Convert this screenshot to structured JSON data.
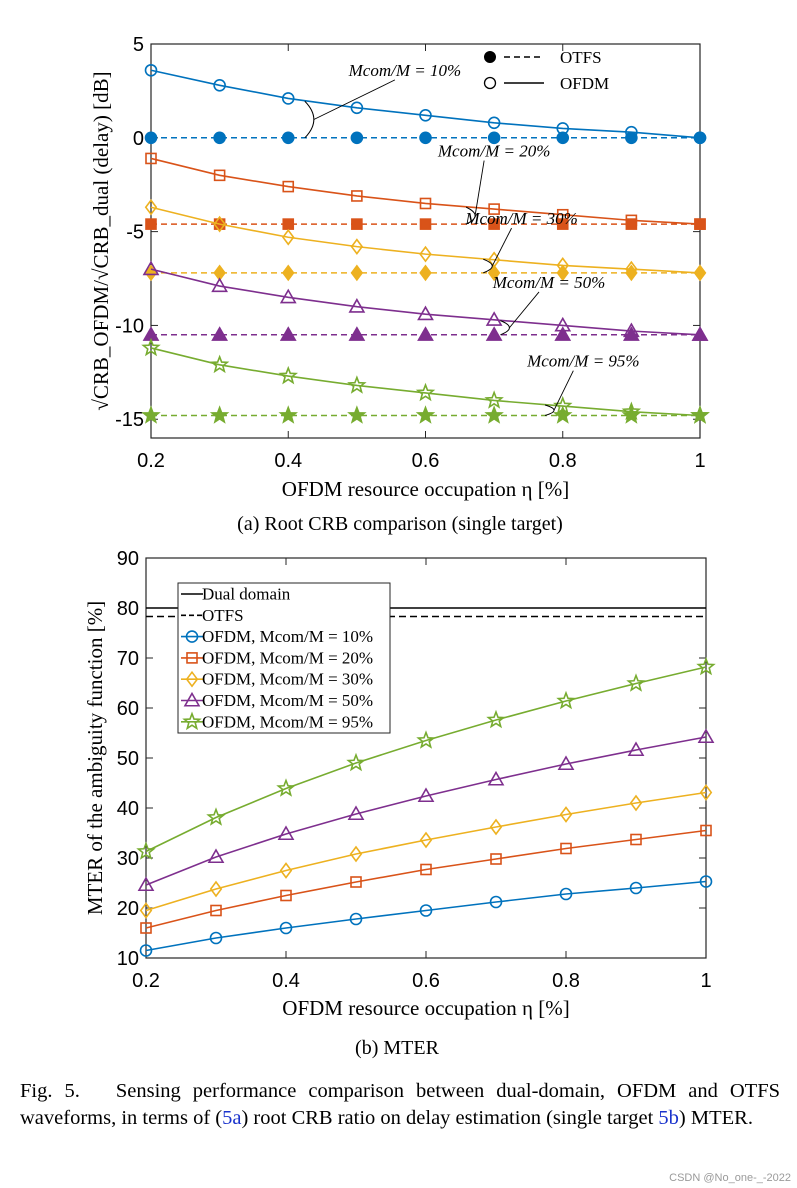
{
  "chart_data": [
    {
      "type": "line",
      "id": "a",
      "subcaption": "(a) Root CRB comparison (single target)",
      "xlabel": "OFDM resource occupation η [%]",
      "ylabel": "√CRB_OFDM/√CRB_dual (delay) [dB]",
      "xlim": [
        0.2,
        1
      ],
      "ylim": [
        -16,
        5
      ],
      "xticks": [
        "0.2",
        "0.4",
        "0.6",
        "0.8",
        "1"
      ],
      "yticks": [
        "5",
        "0",
        "-5",
        "-10",
        "-15"
      ],
      "x": [
        0.2,
        0.3,
        0.4,
        0.5,
        0.6,
        0.7,
        0.8,
        0.9,
        1.0
      ],
      "legend": [
        {
          "label": "OTFS",
          "style": "dashed",
          "marker": "filled-circle"
        },
        {
          "label": "OFDM",
          "style": "solid",
          "marker": "open-circle"
        }
      ],
      "series": [
        {
          "name": "OFDM, Mcom/M = 10%",
          "color": "#0072BD",
          "marker": "circle",
          "annotation": "Mcom/M = 10%",
          "ofdm": [
            3.6,
            2.8,
            2.1,
            1.6,
            1.2,
            0.8,
            0.5,
            0.3,
            0.0
          ],
          "otfs": 0.0
        },
        {
          "name": "OFDM, Mcom/M = 20%",
          "color": "#D95319",
          "marker": "square",
          "annotation": "Mcom/M = 20%",
          "ofdm": [
            -1.1,
            -2.0,
            -2.6,
            -3.1,
            -3.5,
            -3.8,
            -4.1,
            -4.4,
            -4.6
          ],
          "otfs": -4.6
        },
        {
          "name": "OFDM, Mcom/M = 30%",
          "color": "#EDB120",
          "marker": "diamond",
          "annotation": "Mcom/M = 30%",
          "ofdm": [
            -3.7,
            -4.6,
            -5.3,
            -5.8,
            -6.2,
            -6.5,
            -6.8,
            -7.0,
            -7.2
          ],
          "otfs": -7.2
        },
        {
          "name": "OFDM, Mcom/M = 50%",
          "color": "#7E2F8E",
          "marker": "triangle",
          "annotation": "Mcom/M = 50%",
          "ofdm": [
            -7.0,
            -7.9,
            -8.5,
            -9.0,
            -9.4,
            -9.7,
            -10.0,
            -10.3,
            -10.5
          ],
          "otfs": -10.5
        },
        {
          "name": "OFDM, Mcom/M = 95%",
          "color": "#77AC30",
          "marker": "star",
          "annotation": "Mcom/M = 95%",
          "ofdm": [
            -11.2,
            -12.1,
            -12.7,
            -13.2,
            -13.6,
            -14.0,
            -14.3,
            -14.6,
            -14.8
          ],
          "otfs": -14.8
        }
      ]
    },
    {
      "type": "line",
      "id": "b",
      "subcaption": "(b) MTER",
      "xlabel": "OFDM resource occupation η [%]",
      "ylabel": "MTER of the ambiguity function [%]",
      "xlim": [
        0.2,
        1
      ],
      "ylim": [
        10,
        90
      ],
      "xticks": [
        "0.2",
        "0.4",
        "0.6",
        "0.8",
        "1"
      ],
      "yticks": [
        "90",
        "80",
        "70",
        "60",
        "50",
        "40",
        "30",
        "20",
        "10"
      ],
      "x": [
        0.2,
        0.3,
        0.4,
        0.5,
        0.6,
        0.7,
        0.8,
        0.9,
        1.0
      ],
      "reference_lines": [
        {
          "name": "Dual domain",
          "value": 80,
          "style": "solid",
          "color": "#000000"
        },
        {
          "name": "OTFS",
          "value": 78.3,
          "style": "dashed",
          "color": "#000000"
        }
      ],
      "series": [
        {
          "name": "OFDM, Mcom/M = 10%",
          "color": "#0072BD",
          "marker": "circle",
          "values": [
            11.5,
            14.0,
            16.0,
            17.8,
            19.5,
            21.2,
            22.8,
            24.0,
            25.3
          ]
        },
        {
          "name": "OFDM, Mcom/M = 20%",
          "color": "#D95319",
          "marker": "square",
          "values": [
            16.0,
            19.5,
            22.5,
            25.2,
            27.7,
            29.8,
            31.9,
            33.7,
            35.5
          ]
        },
        {
          "name": "OFDM, Mcom/M = 30%",
          "color": "#EDB120",
          "marker": "diamond",
          "values": [
            19.5,
            23.8,
            27.5,
            30.8,
            33.6,
            36.2,
            38.7,
            41.0,
            43.1
          ]
        },
        {
          "name": "OFDM, Mcom/M = 50%",
          "color": "#7E2F8E",
          "marker": "triangle",
          "values": [
            24.6,
            30.2,
            34.8,
            38.8,
            42.4,
            45.7,
            48.8,
            51.6,
            54.2
          ]
        },
        {
          "name": "OFDM, Mcom/M = 95%",
          "color": "#77AC30",
          "marker": "star",
          "values": [
            31.3,
            38.1,
            43.9,
            49.0,
            53.5,
            57.6,
            61.4,
            64.9,
            68.2
          ]
        }
      ]
    }
  ],
  "caption": {
    "fig_label": "Fig. 5.",
    "text_1": "Sensing performance comparison between dual-domain, OFDM and OTFS waveforms, in terms of (",
    "ref_a": "5a",
    "text_2": ") root CRB ratio on delay estimation (single target ",
    "ref_b": "5b",
    "text_3": ") MTER."
  },
  "watermark": "CSDN @No_one-_-2022"
}
